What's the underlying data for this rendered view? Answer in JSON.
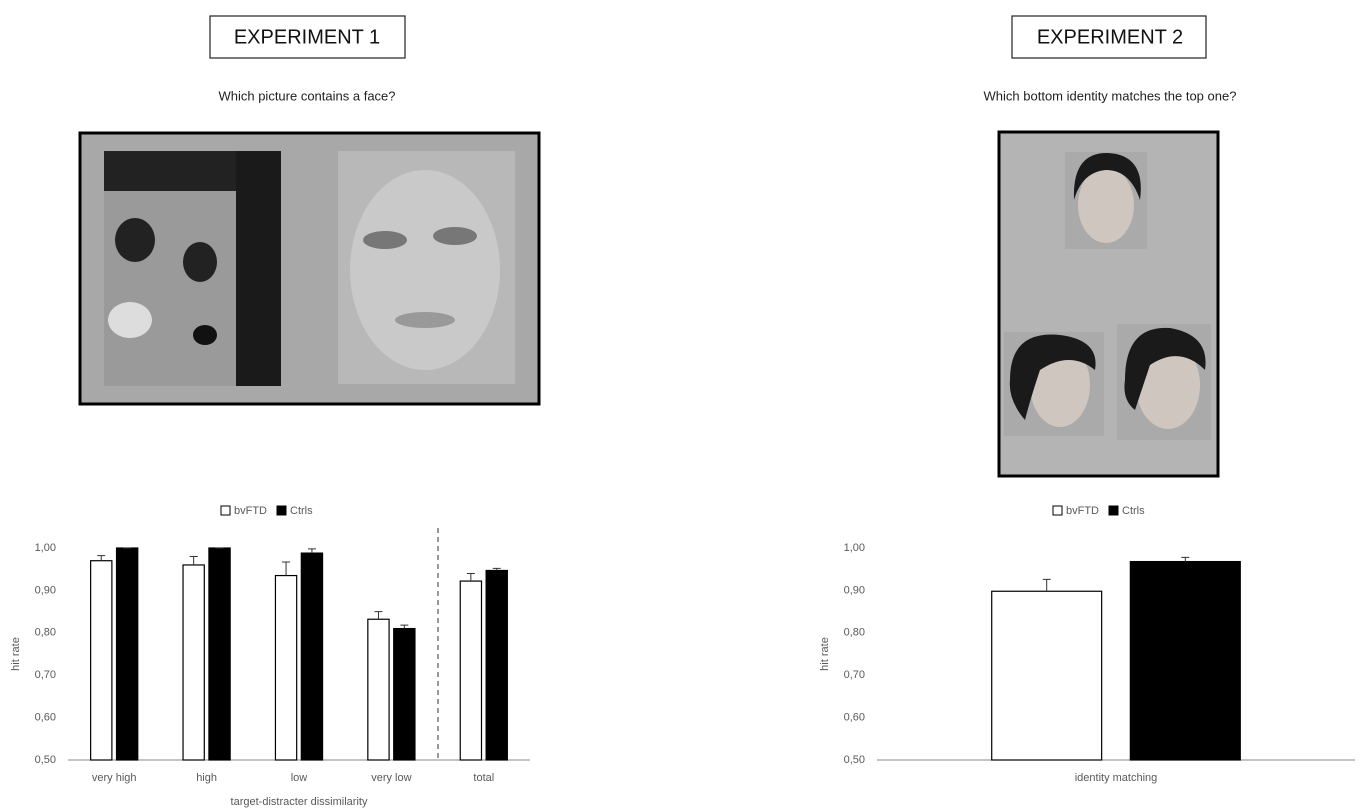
{
  "chart_data": [
    {
      "type": "bar",
      "title": "EXPERIMENT 1",
      "subtitle": "Which picture contains a face?",
      "xlabel": "target-distracter dissimilarity",
      "ylabel": "hit rate",
      "categories": [
        "very high",
        "high",
        "low",
        "very low",
        "total"
      ],
      "series": [
        {
          "name": "bvFTD",
          "color": "#ffffff",
          "values": [
            0.97,
            0.96,
            0.935,
            0.832,
            0.922
          ],
          "errors": [
            0.012,
            0.02,
            0.032,
            0.018,
            0.018
          ]
        },
        {
          "name": "Ctrls",
          "color": "#000000",
          "values": [
            1.0,
            1.0,
            0.988,
            0.81,
            0.947
          ],
          "errors": [
            0,
            0,
            0.01,
            0.008,
            0.005
          ]
        }
      ],
      "ylim": [
        0.5,
        1.0
      ],
      "yticks": [
        {
          "value": 0.5,
          "label": "0,50"
        },
        {
          "value": 0.6,
          "label": "0,60"
        },
        {
          "value": 0.7,
          "label": "0,70"
        },
        {
          "value": 0.8,
          "label": "0,80"
        },
        {
          "value": 0.9,
          "label": "0,90"
        },
        {
          "value": 1.0,
          "label": "1,00"
        }
      ],
      "grid": false,
      "legend": "top"
    },
    {
      "type": "bar",
      "title": "EXPERIMENT 2",
      "subtitle": "Which bottom identity matches the top one?",
      "ylabel": "hit rate",
      "categories": [
        "identity matching"
      ],
      "series": [
        {
          "name": "bvFTD",
          "color": "#ffffff",
          "values": [
            0.898
          ],
          "errors": [
            0.028
          ]
        },
        {
          "name": "Ctrls",
          "color": "#000000",
          "values": [
            0.968
          ],
          "errors": [
            0.01
          ]
        }
      ],
      "ylim": [
        0.5,
        1.0
      ],
      "yticks": [
        {
          "value": 0.5,
          "label": "0,50"
        },
        {
          "value": 0.6,
          "label": "0,60"
        },
        {
          "value": 0.7,
          "label": "0,70"
        },
        {
          "value": 0.8,
          "label": "0,80"
        },
        {
          "value": 0.9,
          "label": "0,90"
        },
        {
          "value": 1.0,
          "label": "1,00"
        }
      ],
      "grid": false,
      "legend": "top"
    }
  ]
}
